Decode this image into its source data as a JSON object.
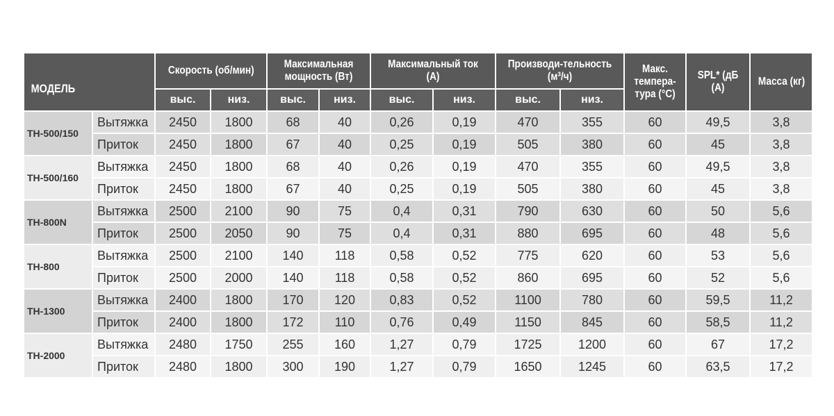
{
  "header": {
    "model": "МОДЕЛЬ",
    "speed": "Скорость (об/мин)",
    "power": "Максимальная мощность (Вт)",
    "current": "Максимальный ток (А)",
    "airflow": "Производи-тельность (м³/ч)",
    "temp": "Макс. темпера-тура (°С)",
    "spl": "SPL* (дБ (А)",
    "mass": "Масса (кг)",
    "high": "выс.",
    "low": "низ."
  },
  "models": [
    {
      "name": "ТН-500/150",
      "rows": [
        {
          "mode": "Вытяжка",
          "values": [
            "2450",
            "1800",
            "68",
            "40",
            "0,26",
            "0,19",
            "470",
            "355",
            "60",
            "49,5",
            "3,8"
          ]
        },
        {
          "mode": "Приток",
          "values": [
            "2450",
            "1800",
            "67",
            "40",
            "0,25",
            "0,19",
            "505",
            "380",
            "60",
            "45",
            "3,8"
          ]
        }
      ]
    },
    {
      "name": "ТН-500/160",
      "rows": [
        {
          "mode": "Вытяжка",
          "values": [
            "2450",
            "1800",
            "68",
            "40",
            "0,26",
            "0,19",
            "470",
            "355",
            "60",
            "49,5",
            "3,8"
          ]
        },
        {
          "mode": "Приток",
          "values": [
            "2450",
            "1800",
            "67",
            "40",
            "0,25",
            "0,19",
            "505",
            "380",
            "60",
            "45",
            "3,8"
          ]
        }
      ]
    },
    {
      "name": "ТН-800N",
      "rows": [
        {
          "mode": "Вытяжка",
          "values": [
            "2500",
            "2100",
            "90",
            "75",
            "0,4",
            "0,31",
            "790",
            "630",
            "60",
            "50",
            "5,6"
          ]
        },
        {
          "mode": "Приток",
          "values": [
            "2500",
            "2050",
            "90",
            "75",
            "0,4",
            "0,31",
            "880",
            "695",
            "60",
            "48",
            "5,6"
          ]
        }
      ]
    },
    {
      "name": "ТН-800",
      "rows": [
        {
          "mode": "Вытяжка",
          "values": [
            "2500",
            "2100",
            "140",
            "118",
            "0,58",
            "0,52",
            "775",
            "620",
            "60",
            "53",
            "5,6"
          ]
        },
        {
          "mode": "Приток",
          "values": [
            "2500",
            "2000",
            "140",
            "118",
            "0,58",
            "0,52",
            "860",
            "695",
            "60",
            "52",
            "5,6"
          ]
        }
      ]
    },
    {
      "name": "ТН-1300",
      "rows": [
        {
          "mode": "Вытяжка",
          "values": [
            "2400",
            "1800",
            "170",
            "120",
            "0,83",
            "0,52",
            "1100",
            "780",
            "60",
            "59,5",
            "11,2"
          ]
        },
        {
          "mode": "Приток",
          "values": [
            "2400",
            "1800",
            "172",
            "110",
            "0,76",
            "0,49",
            "1150",
            "845",
            "60",
            "58,5",
            "11,2"
          ]
        }
      ]
    },
    {
      "name": "ТН-2000",
      "rows": [
        {
          "mode": "Вытяжка",
          "values": [
            "2480",
            "1750",
            "255",
            "160",
            "1,27",
            "0,79",
            "1725",
            "1200",
            "60",
            "67",
            "17,2"
          ]
        },
        {
          "mode": "Приток",
          "values": [
            "2480",
            "1800",
            "300",
            "190",
            "1,27",
            "0,79",
            "1650",
            "1245",
            "60",
            "63,5",
            "17,2"
          ]
        }
      ]
    }
  ]
}
